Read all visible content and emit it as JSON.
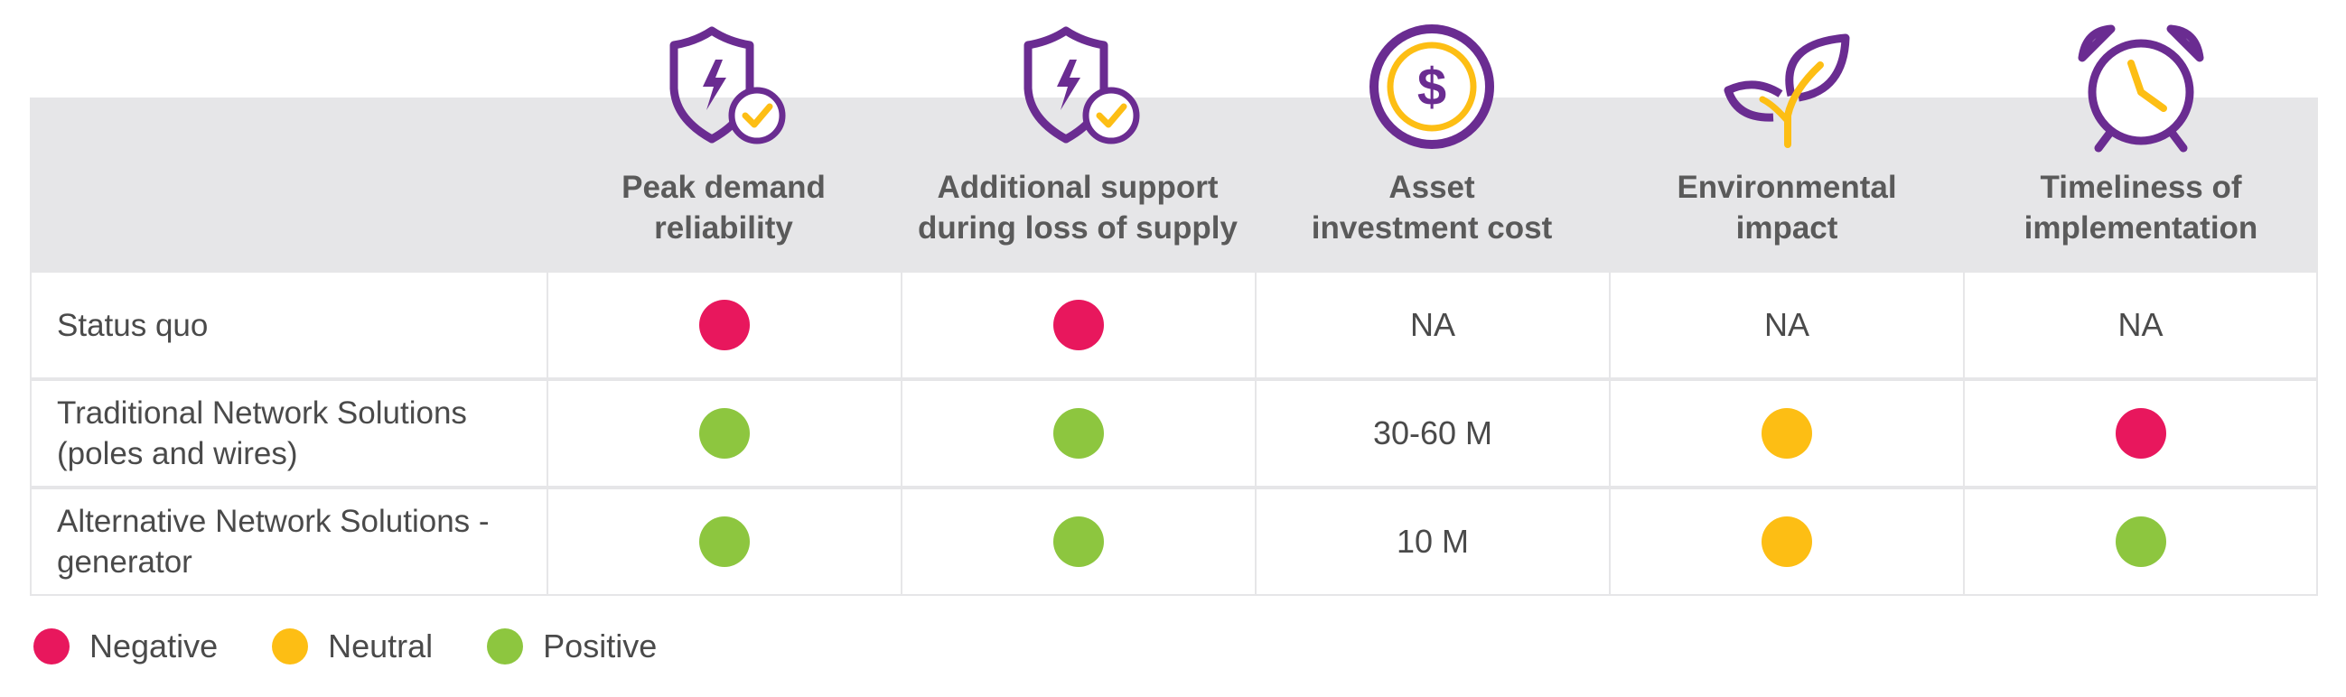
{
  "colors": {
    "negative": "#e8175d",
    "neutral": "#fdbe14",
    "positive": "#8dc63f",
    "purple": "#6a2c91",
    "header_bg": "#e6e6e8"
  },
  "columns": [
    {
      "label": "Peak demand\nreliability",
      "icon": "shield-bolt-check-icon"
    },
    {
      "label": "Additional support\nduring loss of supply",
      "icon": "shield-bolt-check-icon"
    },
    {
      "label": "Asset\ninvestment cost",
      "icon": "dollar-coin-icon"
    },
    {
      "label": "Environmental\nimpact",
      "icon": "leaf-plant-icon"
    },
    {
      "label": "Timeliness of\nimplementation",
      "icon": "alarm-clock-icon"
    }
  ],
  "rows": [
    {
      "label": "Status quo",
      "cells": [
        {
          "dot": "negative"
        },
        {
          "dot": "negative"
        },
        {
          "text": "NA"
        },
        {
          "text": "NA"
        },
        {
          "text": "NA"
        }
      ]
    },
    {
      "label": "Traditional Network Solutions\n(poles and wires)",
      "cells": [
        {
          "dot": "positive"
        },
        {
          "dot": "positive"
        },
        {
          "text": "30-60 M"
        },
        {
          "dot": "neutral"
        },
        {
          "dot": "negative"
        }
      ]
    },
    {
      "label": "Alternative Network Solutions -\ngenerator",
      "cells": [
        {
          "dot": "positive"
        },
        {
          "dot": "positive"
        },
        {
          "text": "10 M"
        },
        {
          "dot": "neutral"
        },
        {
          "dot": "positive"
        }
      ]
    }
  ],
  "legend": [
    {
      "label": "Negative",
      "color": "negative"
    },
    {
      "label": "Neutral",
      "color": "neutral"
    },
    {
      "label": "Positive",
      "color": "positive"
    }
  ]
}
